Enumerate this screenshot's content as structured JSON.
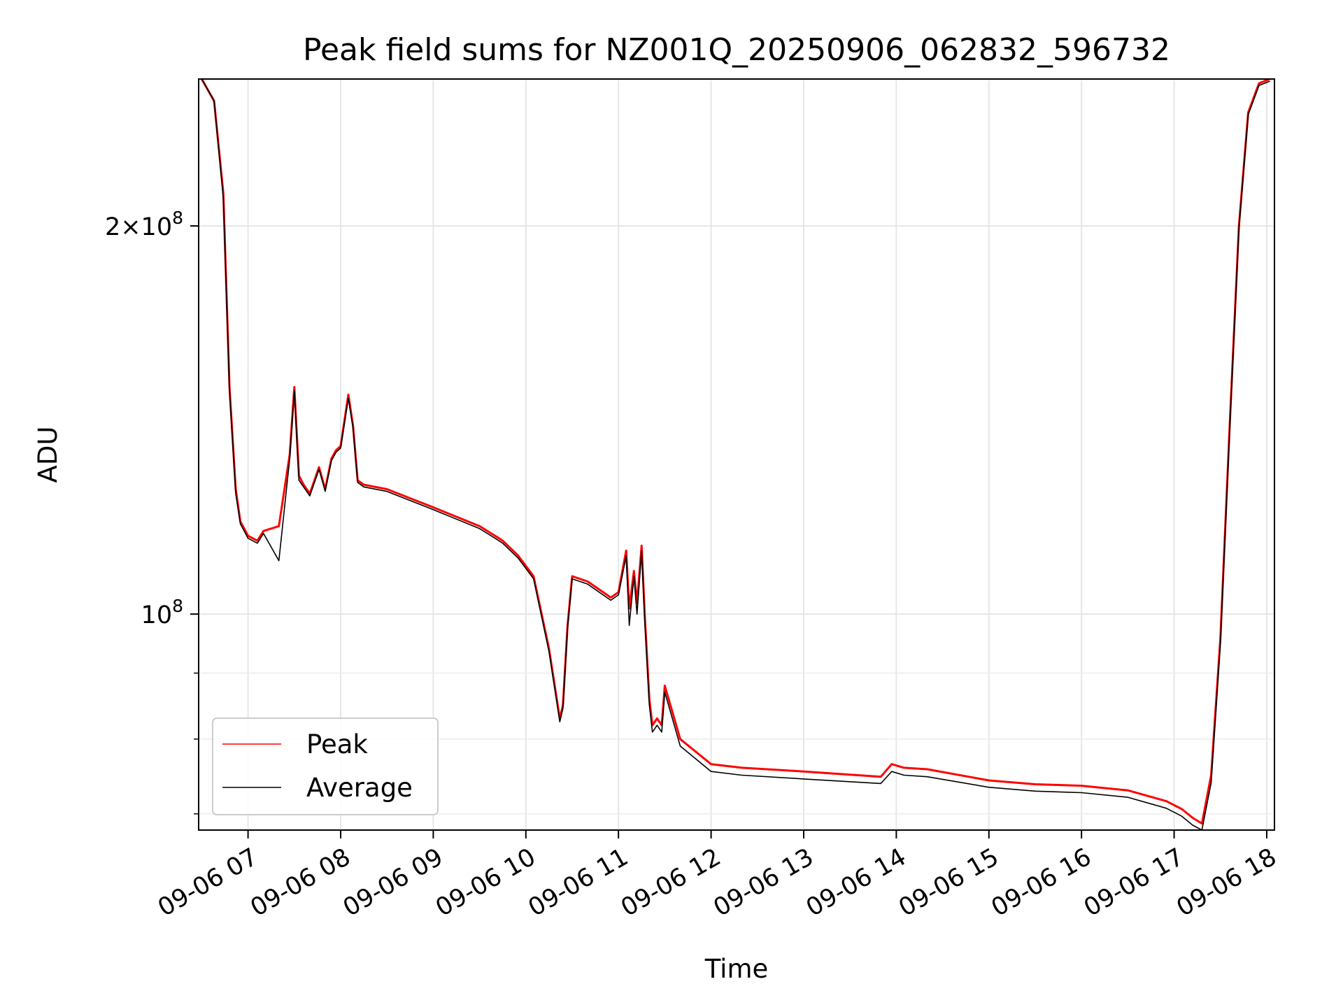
{
  "chart_data": {
    "type": "line",
    "title": "Peak field sums for NZ001Q_20250906_062832_596732",
    "xlabel": "Time",
    "ylabel": "ADU",
    "yscale": "log",
    "xlim": [
      "09-06 06:28",
      "09-06 18:05"
    ],
    "ylim": [
      68000000,
      260000000
    ],
    "x_ticks": [
      "09-06 07",
      "09-06 08",
      "09-06 09",
      "09-06 10",
      "09-06 11",
      "09-06 12",
      "09-06 13",
      "09-06 14",
      "09-06 15",
      "09-06 16",
      "09-06 17",
      "09-06 18"
    ],
    "y_ticks": [
      {
        "value": 200000000,
        "mantissa": "2",
        "exponent": "8"
      },
      {
        "value": 100000000,
        "mantissa": "",
        "exponent": "8"
      }
    ],
    "grid": true,
    "legend_position": "lower-left",
    "series": [
      {
        "name": "Peak",
        "color": "#ff0000",
        "x": [
          "09-06 06:30",
          "09-06 06:38",
          "09-06 06:44",
          "09-06 06:48",
          "09-06 06:52",
          "09-06 06:55",
          "09-06 07:00",
          "09-06 07:06",
          "09-06 07:10",
          "09-06 07:20",
          "09-06 07:27",
          "09-06 07:30",
          "09-06 07:33",
          "09-06 07:36",
          "09-06 07:40",
          "09-06 07:46",
          "09-06 07:50",
          "09-06 07:54",
          "09-06 07:57",
          "09-06 08:00",
          "09-06 08:05",
          "09-06 08:08",
          "09-06 08:11",
          "09-06 08:15",
          "09-06 08:30",
          "09-06 09:00",
          "09-06 09:30",
          "09-06 09:40",
          "09-06 09:45",
          "09-06 09:55",
          "09-06 10:05",
          "09-06 10:15",
          "09-06 10:22",
          "09-06 10:24",
          "09-06 10:27",
          "09-06 10:30",
          "09-06 10:40",
          "09-06 10:55",
          "09-06 11:00",
          "09-06 11:05",
          "09-06 11:07",
          "09-06 11:10",
          "09-06 11:12",
          "09-06 11:15",
          "09-06 11:17",
          "09-06 11:20",
          "09-06 11:22",
          "09-06 11:25",
          "09-06 11:28",
          "09-06 11:30",
          "09-06 11:40",
          "09-06 12:00",
          "09-06 12:20",
          "09-06 13:00",
          "09-06 13:50",
          "09-06 13:57",
          "09-06 14:05",
          "09-06 14:20",
          "09-06 15:00",
          "09-06 15:30",
          "09-06 16:00",
          "09-06 16:30",
          "09-06 16:55",
          "09-06 17:05",
          "09-06 17:12",
          "09-06 17:18",
          "09-06 17:24",
          "09-06 17:30",
          "09-06 17:36",
          "09-06 17:42",
          "09-06 17:48",
          "09-06 17:55",
          "09-06 18:02"
        ],
        "y": [
          260000000,
          250000000,
          212000000,
          150000000,
          125000000,
          118000000,
          115000000,
          114000000,
          116000000,
          117000000,
          133000000,
          150000000,
          128000000,
          126000000,
          124000000,
          130000000,
          125000000,
          132000000,
          134000000,
          135000000,
          148000000,
          140000000,
          127000000,
          126000000,
          125000000,
          121000000,
          117000000,
          115000000,
          114000000,
          111000000,
          107000000,
          94000000,
          83000000,
          85000000,
          98000000,
          107000000,
          106000000,
          103000000,
          104000000,
          112000000,
          101000000,
          108000000,
          102000000,
          113000000,
          100000000,
          86000000,
          82000000,
          83000000,
          82000000,
          88000000,
          80000000,
          76500000,
          76000000,
          75500000,
          74800000,
          76500000,
          76000000,
          75800000,
          74300000,
          73800000,
          73600000,
          73000000,
          71600000,
          70600000,
          69500000,
          68800000,
          75000000,
          96000000,
          140000000,
          200000000,
          245000000,
          258000000,
          260000000
        ]
      },
      {
        "name": "Average",
        "color": "#000000",
        "x": [
          "09-06 06:30",
          "09-06 06:38",
          "09-06 06:44",
          "09-06 06:48",
          "09-06 06:52",
          "09-06 06:55",
          "09-06 07:00",
          "09-06 07:06",
          "09-06 07:10",
          "09-06 07:20",
          "09-06 07:27",
          "09-06 07:30",
          "09-06 07:33",
          "09-06 07:36",
          "09-06 07:40",
          "09-06 07:46",
          "09-06 07:50",
          "09-06 07:54",
          "09-06 07:57",
          "09-06 08:00",
          "09-06 08:05",
          "09-06 08:08",
          "09-06 08:11",
          "09-06 08:15",
          "09-06 08:30",
          "09-06 09:00",
          "09-06 09:30",
          "09-06 09:40",
          "09-06 09:45",
          "09-06 09:55",
          "09-06 10:05",
          "09-06 10:15",
          "09-06 10:22",
          "09-06 10:24",
          "09-06 10:27",
          "09-06 10:30",
          "09-06 10:40",
          "09-06 10:55",
          "09-06 11:00",
          "09-06 11:05",
          "09-06 11:07",
          "09-06 11:10",
          "09-06 11:12",
          "09-06 11:15",
          "09-06 11:17",
          "09-06 11:20",
          "09-06 11:22",
          "09-06 11:25",
          "09-06 11:28",
          "09-06 11:30",
          "09-06 11:40",
          "09-06 12:00",
          "09-06 12:20",
          "09-06 13:00",
          "09-06 13:50",
          "09-06 13:57",
          "09-06 14:05",
          "09-06 14:20",
          "09-06 15:00",
          "09-06 15:30",
          "09-06 16:00",
          "09-06 16:30",
          "09-06 16:55",
          "09-06 17:05",
          "09-06 17:12",
          "09-06 17:18",
          "09-06 17:24",
          "09-06 17:30",
          "09-06 17:36",
          "09-06 17:42",
          "09-06 17:48",
          "09-06 17:55",
          "09-06 18:02"
        ],
        "y": [
          260000000,
          250000000,
          210000000,
          149000000,
          124000000,
          117500000,
          114500000,
          113500000,
          115500000,
          110000000,
          132000000,
          149000000,
          127000000,
          125500000,
          123500000,
          129500000,
          124500000,
          131500000,
          133500000,
          134500000,
          147000000,
          139500000,
          126500000,
          125500000,
          124500000,
          120500000,
          116500000,
          114500000,
          113500000,
          110500000,
          106500000,
          93500000,
          82500000,
          84500000,
          97500000,
          106500000,
          105500000,
          102500000,
          103500000,
          111000000,
          98000000,
          107000000,
          100000000,
          112000000,
          99000000,
          85000000,
          81000000,
          82000000,
          81000000,
          87000000,
          79000000,
          75500000,
          75000000,
          74500000,
          73900000,
          75500000,
          75000000,
          74800000,
          73400000,
          72900000,
          72700000,
          72100000,
          70700000,
          69700000,
          68600000,
          68000000,
          74000000,
          95000000,
          139000000,
          199000000,
          244000000,
          257000000,
          259000000
        ]
      }
    ]
  }
}
